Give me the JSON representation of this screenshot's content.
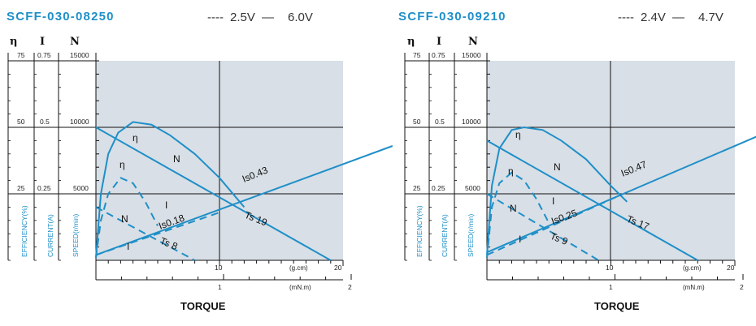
{
  "colors": {
    "curve": "#1f8fc8",
    "plot_bg": "#d8dfe6",
    "title": "#1f8fc8"
  },
  "legend": {
    "low_prefix": "----",
    "high_prefix": "—"
  },
  "chart_data": [
    {
      "type": "line",
      "title": "SCFF-030-08250",
      "legend_low": "2.5V",
      "legend_high": "6.0V",
      "header_eff": "η",
      "header_cur": "I",
      "header_spd": "N",
      "eff_ticks": [
        "75",
        "50",
        "25"
      ],
      "cur_ticks": [
        "0.75",
        "0.5",
        "0.25"
      ],
      "spd_ticks": [
        "15000",
        "10000",
        "5000"
      ],
      "eff_label": "EFFICIENCY(%)",
      "cur_label": "CURRENT(A)",
      "spd_label": "SPEED(r/min)",
      "gcm_ticks": [
        "10",
        "20"
      ],
      "gcm_unit": "(g.cm)",
      "mnm_ticks": [
        "1",
        "2"
      ],
      "mnm_unit": "(mN.m)",
      "xlabel": "TORQUE",
      "xlim_gcm": [
        0,
        20
      ],
      "ylim_speed": [
        0,
        15000
      ],
      "grid": true,
      "high_voltage": {
        "label_n": "N",
        "label_i": "Is0.43",
        "label_ts": "Ts 19",
        "label_eta": "η",
        "speed": [
          [
            0,
            10000
          ],
          [
            19,
            0
          ]
        ],
        "current": [
          [
            0,
            0.02
          ],
          [
            24,
            0.43
          ]
        ],
        "efficiency": [
          [
            0,
            1
          ],
          [
            0.4,
            25
          ],
          [
            1,
            40
          ],
          [
            1.8,
            48
          ],
          [
            3,
            52
          ],
          [
            4.5,
            51
          ],
          [
            6,
            47
          ],
          [
            8,
            40
          ],
          [
            10,
            31
          ],
          [
            12,
            20
          ]
        ]
      },
      "low_voltage": {
        "label_n": "N",
        "label_i": "I",
        "label_is": "Is0.18",
        "label_ts": "Ts 8",
        "label_eta": "η",
        "speed": [
          [
            0,
            4000
          ],
          [
            8,
            0
          ]
        ],
        "current": [
          [
            0,
            0.02
          ],
          [
            10,
            0.18
          ]
        ],
        "efficiency": [
          [
            0,
            1
          ],
          [
            0.4,
            15
          ],
          [
            1,
            25
          ],
          [
            2,
            31
          ],
          [
            3,
            29
          ],
          [
            4,
            22
          ],
          [
            5,
            13
          ]
        ]
      }
    },
    {
      "type": "line",
      "title": "SCFF-030-09210",
      "legend_low": "2.4V",
      "legend_high": "4.7V",
      "header_eff": "η",
      "header_cur": "I",
      "header_spd": "N",
      "eff_ticks": [
        "75",
        "50",
        "25"
      ],
      "cur_ticks": [
        "0.75",
        "0.5",
        "0.25"
      ],
      "spd_ticks": [
        "15000",
        "10000",
        "5000"
      ],
      "eff_label": "EFFICIENCY(%)",
      "cur_label": "CURRENT(A)",
      "spd_label": "SPEED(r/min)",
      "gcm_ticks": [
        "10",
        "20"
      ],
      "gcm_unit": "(g.cm)",
      "mnm_ticks": [
        "1",
        "2"
      ],
      "mnm_unit": "(mN.m)",
      "xlabel": "TORQUE",
      "xlim_gcm": [
        0,
        20
      ],
      "ylim_speed": [
        0,
        15000
      ],
      "grid": true,
      "high_voltage": {
        "label_n": "N",
        "label_i": "Is0.47",
        "label_ts": "Ts 17",
        "label_eta": "η",
        "speed": [
          [
            0,
            9000
          ],
          [
            17,
            0
          ]
        ],
        "current": [
          [
            0,
            0.03
          ],
          [
            22,
            0.47
          ]
        ],
        "efficiency": [
          [
            0,
            2
          ],
          [
            0.4,
            28
          ],
          [
            1,
            42
          ],
          [
            2,
            49
          ],
          [
            3,
            50
          ],
          [
            4.5,
            49
          ],
          [
            6,
            45
          ],
          [
            8,
            38
          ],
          [
            10,
            28
          ],
          [
            11.3,
            22
          ]
        ]
      },
      "low_voltage": {
        "label_n": "N",
        "label_i": "I",
        "label_is": "Is0.25",
        "label_ts": "Ts 9",
        "label_eta": "η",
        "speed": [
          [
            0,
            5000
          ],
          [
            9,
            0
          ]
        ],
        "current": [
          [
            0,
            0.02
          ],
          [
            11,
            0.25
          ]
        ],
        "efficiency": [
          [
            0,
            1
          ],
          [
            0.4,
            20
          ],
          [
            1,
            29
          ],
          [
            2,
            33
          ],
          [
            3,
            30
          ],
          [
            4,
            23
          ],
          [
            5,
            14
          ]
        ]
      }
    }
  ]
}
